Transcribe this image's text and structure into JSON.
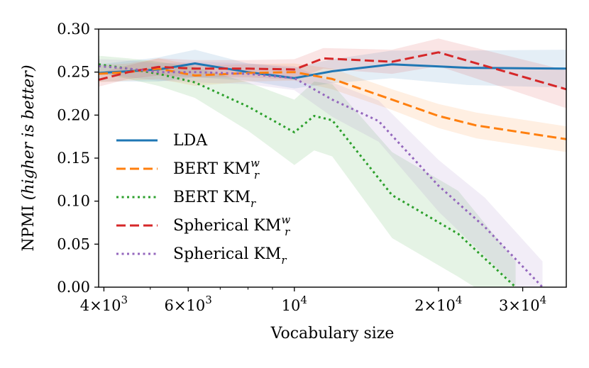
{
  "chart_data": {
    "type": "line",
    "xscale": "log",
    "xlabel": "Vocabulary size",
    "ylabel_main": "NPMI ",
    "ylabel_italic": "(higher is better)",
    "xlim": [
      3900,
      37000
    ],
    "ylim": [
      0.0,
      0.3
    ],
    "grid": false,
    "legend_position": "left",
    "yticks": [
      {
        "value": 0.0,
        "label": "0.00"
      },
      {
        "value": 0.05,
        "label": "0.05"
      },
      {
        "value": 0.1,
        "label": "0.10"
      },
      {
        "value": 0.15,
        "label": "0.15"
      },
      {
        "value": 0.2,
        "label": "0.20"
      },
      {
        "value": 0.25,
        "label": "0.25"
      },
      {
        "value": 0.3,
        "label": "0.30"
      }
    ],
    "xticks_major": [
      {
        "value": 4000,
        "mant": "4",
        "exp": "3"
      },
      {
        "value": 6000,
        "mant": "6",
        "exp": "3"
      },
      {
        "value": 10000,
        "mant": "",
        "exp": "4"
      },
      {
        "value": 20000,
        "mant": "2",
        "exp": "4"
      },
      {
        "value": 30000,
        "mant": "3",
        "exp": "4"
      }
    ],
    "xticks_minor": [
      5000,
      7000,
      8000,
      9000,
      40000
    ],
    "series": [
      {
        "name": "LDA",
        "label_main": "LDA",
        "label_sub": "",
        "label_sup": "",
        "color": "#1f77b4",
        "style": "solid",
        "x": [
          3900,
          4500,
          5200,
          6200,
          8000,
          10000,
          12000,
          16000,
          23000,
          37000
        ],
        "y": [
          0.249,
          0.251,
          0.253,
          0.26,
          0.25,
          0.243,
          0.251,
          0.259,
          0.255,
          0.254
        ],
        "band": [
          0.01,
          0.012,
          0.014,
          0.016,
          0.01,
          0.012,
          0.014,
          0.016,
          0.02,
          0.022
        ]
      },
      {
        "name": "BERT KM_r^w",
        "label_main": "BERT KM",
        "label_sub": "r",
        "label_sup": "w",
        "color": "#ff7f0e",
        "style": "dashed",
        "x": [
          3900,
          4500,
          5200,
          6200,
          8000,
          10000,
          12000,
          16000,
          20000,
          24000,
          37000
        ],
        "y": [
          0.248,
          0.25,
          0.254,
          0.246,
          0.249,
          0.25,
          0.242,
          0.218,
          0.199,
          0.188,
          0.172
        ],
        "band": [
          0.01,
          0.01,
          0.012,
          0.012,
          0.01,
          0.01,
          0.012,
          0.012,
          0.014,
          0.015,
          0.015
        ]
      },
      {
        "name": "BERT KM_r",
        "label_main": "BERT KM",
        "label_sub": "r",
        "label_sup": "",
        "color": "#2ca02c",
        "style": "dotted",
        "x": [
          3900,
          4500,
          5200,
          6200,
          8000,
          10000,
          11000,
          12000,
          16000,
          22000,
          29000
        ],
        "y": [
          0.259,
          0.254,
          0.248,
          0.238,
          0.21,
          0.18,
          0.199,
          0.194,
          0.107,
          0.062,
          0.0
        ],
        "band": [
          0.01,
          0.012,
          0.014,
          0.018,
          0.028,
          0.038,
          0.04,
          0.042,
          0.05,
          0.05,
          0.03
        ]
      },
      {
        "name": "Spherical KM_r^w",
        "label_main": "Spherical KM",
        "label_sub": "r",
        "label_sup": "w",
        "color": "#d62728",
        "style": "dashed",
        "x": [
          3900,
          4500,
          5200,
          6200,
          8000,
          10000,
          11500,
          16000,
          20000,
          37000
        ],
        "y": [
          0.241,
          0.25,
          0.256,
          0.254,
          0.254,
          0.253,
          0.266,
          0.262,
          0.273,
          0.23
        ],
        "band": [
          0.008,
          0.008,
          0.01,
          0.01,
          0.01,
          0.012,
          0.012,
          0.014,
          0.016,
          0.022
        ]
      },
      {
        "name": "Spherical KM_r",
        "label_main": "Spherical KM",
        "label_sub": "r",
        "label_sup": "",
        "color": "#9467bd",
        "style": "dotted",
        "x": [
          3900,
          4500,
          5200,
          6200,
          8000,
          10000,
          12000,
          15000,
          20000,
          25000,
          33000
        ],
        "y": [
          0.257,
          0.254,
          0.25,
          0.25,
          0.248,
          0.243,
          0.218,
          0.193,
          0.118,
          0.07,
          0.0
        ],
        "band": [
          0.008,
          0.01,
          0.01,
          0.012,
          0.012,
          0.014,
          0.02,
          0.024,
          0.03,
          0.034,
          0.03
        ]
      }
    ]
  }
}
